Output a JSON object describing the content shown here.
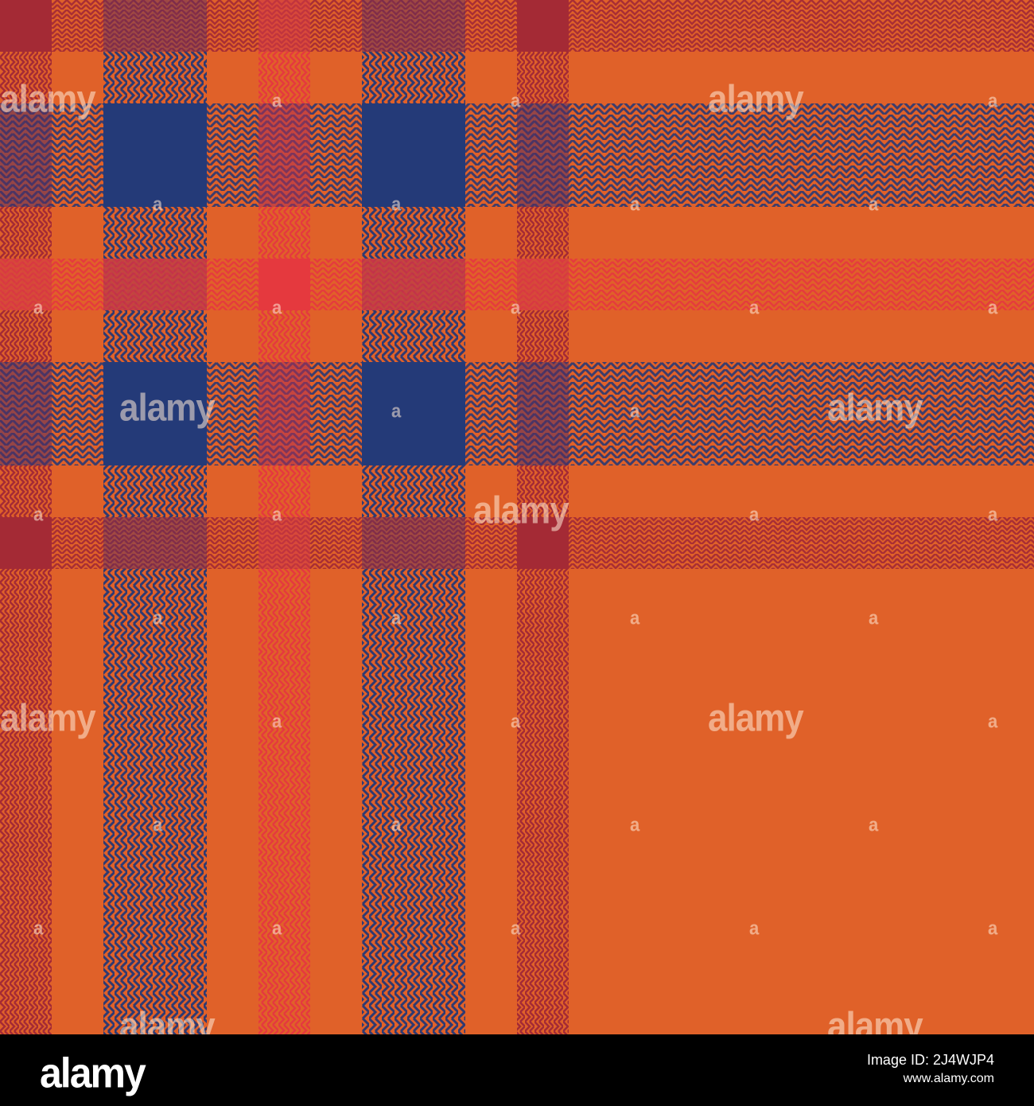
{
  "image": {
    "subject": "orange, navy and red herringbone plaid tartan fabric pattern",
    "palette": {
      "orange": "#E06129",
      "navy": "#243A78",
      "red": "#E53A3E",
      "crimson": "#A42A35",
      "dark_weave": "#3A2F5F"
    }
  },
  "watermark": {
    "text": "alamy",
    "small_text": "a"
  },
  "footer": {
    "logo": "alamy",
    "image_id": "Image ID: 2J4WJP4",
    "site": "www.alamy.com"
  }
}
